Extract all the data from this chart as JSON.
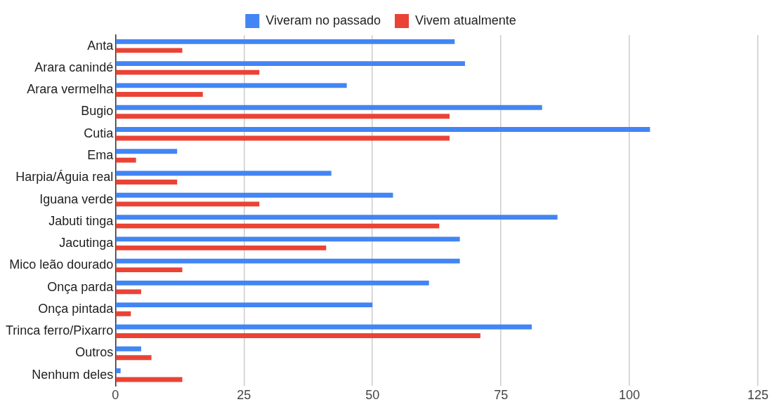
{
  "chart_data": {
    "type": "bar",
    "orientation": "horizontal",
    "categories": [
      "Anta",
      "Arara canindé",
      "Arara vermelha",
      "Bugio",
      "Cutia",
      "Ema",
      "Harpia/Águia real",
      "Iguana verde",
      "Jabuti tinga",
      "Jacutinga",
      "Mico leão dourado",
      "Onça parda",
      "Onça pintada",
      "Trinca ferro/Pixarro",
      "Outros",
      "Nenhum deles"
    ],
    "series": [
      {
        "name": "Viveram no passado",
        "color": "#4285f4",
        "values": [
          66,
          68,
          45,
          83,
          104,
          12,
          42,
          54,
          86,
          67,
          67,
          61,
          50,
          81,
          5,
          1
        ]
      },
      {
        "name": "Vivem atualmente",
        "color": "#ea4335",
        "values": [
          13,
          28,
          17,
          65,
          65,
          4,
          12,
          28,
          63,
          41,
          13,
          5,
          3,
          71,
          7,
          13
        ]
      }
    ],
    "xlim": [
      0,
      125
    ],
    "xticks": [
      0,
      25,
      50,
      75,
      100,
      125
    ],
    "grid": "x",
    "legend": "top"
  }
}
